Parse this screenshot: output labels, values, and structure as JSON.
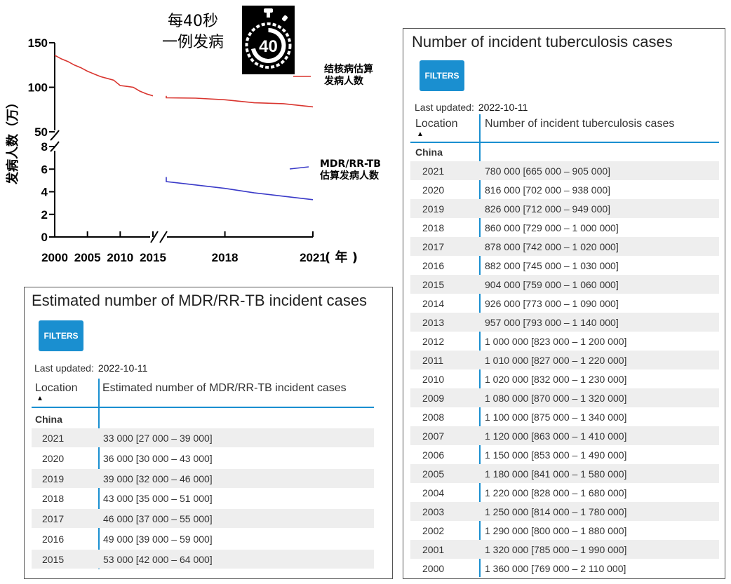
{
  "colors": {
    "tb_line": "#d9352f",
    "mdr_line": "#3a3ac8",
    "accent_blue": "#1a8fd0",
    "row_shade": "#eeeeee"
  },
  "banner": {
    "line1": "每40秒",
    "line2": "一例发病",
    "stopwatch_number": "40",
    "icon": "stopwatch-icon"
  },
  "chart_data": {
    "type": "line",
    "ylabel": "发病人数（万）",
    "xlabel": "( 年 )",
    "x_ticks": [
      "2000",
      "2005",
      "2010",
      "2015",
      "2018",
      "2021"
    ],
    "upper_axis": {
      "ylim": [
        50,
        150
      ],
      "ticks": [
        "150",
        "100",
        "50"
      ]
    },
    "lower_axis": {
      "ylim": [
        0,
        8
      ],
      "ticks": [
        "8",
        "6",
        "4",
        "2",
        "0"
      ]
    },
    "axis_breaks": [
      "y",
      "x"
    ],
    "series": [
      {
        "name": "结核病估算发病人数",
        "axis": "upper",
        "x": [
          2000,
          2001,
          2002,
          2003,
          2004,
          2005,
          2006,
          2007,
          2008,
          2009,
          2010,
          2011,
          2012,
          2013,
          2014,
          2015,
          2016,
          2017,
          2018,
          2019,
          2020,
          2021
        ],
        "y": [
          136,
          132,
          129,
          125,
          122,
          118,
          115,
          112,
          110,
          108,
          102,
          101,
          100,
          95.7,
          92.6,
          90.4,
          88.2,
          87.8,
          86,
          82.6,
          81.6,
          78
        ]
      },
      {
        "name": "MDR/RR-TB估算发病人数",
        "axis": "lower",
        "x": [
          2015,
          2016,
          2017,
          2018,
          2019,
          2020,
          2021
        ],
        "y": [
          5.3,
          4.9,
          4.6,
          4.3,
          3.9,
          3.6,
          3.3
        ]
      }
    ],
    "legend": [
      {
        "line1": "结核病估算",
        "line2": "发病人数"
      },
      {
        "line1": "MDR/RR-TB",
        "line2": "估算发病人数"
      }
    ]
  },
  "mdr_panel": {
    "title": "Estimated number of MDR/RR-TB incident cases",
    "filters_label": "FILTERS",
    "last_updated_label": "Last updated:",
    "last_updated_value": "2022-10-11",
    "col_location": "Location",
    "col_value": "Estimated number of MDR/RR-TB incident cases",
    "country": "China",
    "rows": [
      {
        "year": "2021",
        "value": "33 000 [27 000 – 39 000]"
      },
      {
        "year": "2020",
        "value": "36 000 [30 000 – 43 000]"
      },
      {
        "year": "2019",
        "value": "39 000 [32 000 – 46 000]"
      },
      {
        "year": "2018",
        "value": "43 000 [35 000 – 51 000]"
      },
      {
        "year": "2017",
        "value": "46 000 [37 000 – 55 000]"
      },
      {
        "year": "2016",
        "value": "49 000 [39 000 – 59 000]"
      },
      {
        "year": "2015",
        "value": "53 000 [42 000 – 64 000]"
      }
    ]
  },
  "tb_panel": {
    "title": "Number of incident tuberculosis cases",
    "filters_label": "FILTERS",
    "last_updated_label": "Last updated:",
    "last_updated_value": "2022-10-11",
    "col_location": "Location",
    "col_value": "Number of incident tuberculosis cases",
    "country": "China",
    "rows": [
      {
        "year": "2021",
        "value": "780 000 [665 000 – 905 000]"
      },
      {
        "year": "2020",
        "value": "816 000 [702 000 – 938 000]"
      },
      {
        "year": "2019",
        "value": "826 000 [712 000 – 949 000]"
      },
      {
        "year": "2018",
        "value": "860 000 [729 000 – 1 000 000]"
      },
      {
        "year": "2017",
        "value": "878 000 [742 000 – 1 020 000]"
      },
      {
        "year": "2016",
        "value": "882 000 [745 000 – 1 030 000]"
      },
      {
        "year": "2015",
        "value": "904 000 [759 000 – 1 060 000]"
      },
      {
        "year": "2014",
        "value": "926 000 [773 000 – 1 090 000]"
      },
      {
        "year": "2013",
        "value": "957 000 [793 000 – 1 140 000]"
      },
      {
        "year": "2012",
        "value": "1 000 000 [823 000 – 1 200 000]"
      },
      {
        "year": "2011",
        "value": "1 010 000 [827 000 – 1 220 000]"
      },
      {
        "year": "2010",
        "value": "1 020 000 [832 000 – 1 230 000]"
      },
      {
        "year": "2009",
        "value": "1 080 000 [870 000 – 1 320 000]"
      },
      {
        "year": "2008",
        "value": "1 100 000 [875 000 – 1 340 000]"
      },
      {
        "year": "2007",
        "value": "1 120 000 [863 000 – 1 410 000]"
      },
      {
        "year": "2006",
        "value": "1 150 000 [853 000 – 1 490 000]"
      },
      {
        "year": "2005",
        "value": "1 180 000 [841 000 – 1 580 000]"
      },
      {
        "year": "2004",
        "value": "1 220 000 [828 000 – 1 680 000]"
      },
      {
        "year": "2003",
        "value": "1 250 000 [814 000 – 1 780 000]"
      },
      {
        "year": "2002",
        "value": "1 290 000 [800 000 – 1 880 000]"
      },
      {
        "year": "2001",
        "value": "1 320 000 [785 000 – 1 990 000]"
      },
      {
        "year": "2000",
        "value": "1 360 000 [769 000 – 2 110 000]"
      }
    ]
  }
}
